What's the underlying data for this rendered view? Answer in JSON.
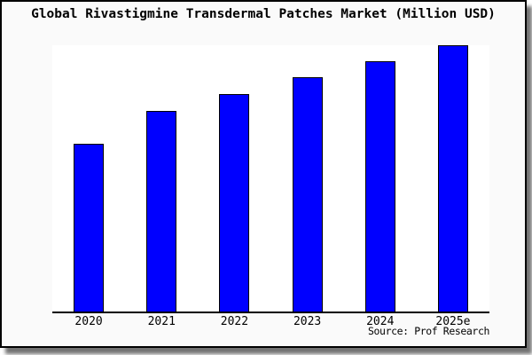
{
  "window": {
    "background_color": "#fafafa",
    "border_color": "#000000",
    "shadow_color": "#808080"
  },
  "chart_data": {
    "type": "bar",
    "title": "Global Rivastigmine Transdermal Patches Market (Million USD)",
    "categories": [
      "2020",
      "2021",
      "2022",
      "2023",
      "2024",
      "2025e"
    ],
    "values": [
      63,
      75.3,
      81.7,
      88,
      94,
      100
    ],
    "value_basis": "relative bar heights as % of tallest bar (no y-axis scale shown)",
    "xlabel": "",
    "ylabel": "",
    "ylim": [
      0,
      100
    ],
    "grid": false,
    "legend": false,
    "bar_color": "#0000ff",
    "bar_border_color": "#000000",
    "plot_background": "#ffffff",
    "axis_color": "#000000"
  },
  "footer": {
    "source_label": "Source: Prof Research"
  }
}
